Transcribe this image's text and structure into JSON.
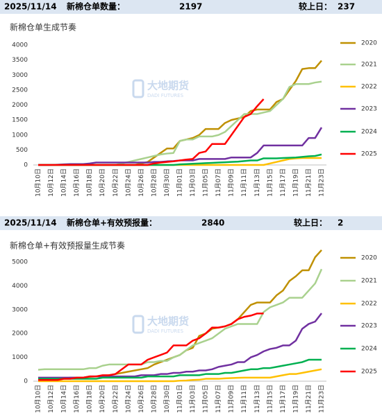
{
  "headers": [
    {
      "date": "2025/11/14",
      "label": "新棉仓单数量：",
      "value": 2197,
      "change_label": "较上日：",
      "change": 237
    },
    {
      "date": "2025/11/14",
      "label": "新棉仓单+有效预报量：",
      "value": 2840,
      "change_label": "较上日：",
      "change": 2
    }
  ],
  "chart_data": [
    {
      "type": "line",
      "title": "新棉仓单生成节奏",
      "watermark": {
        "name": "大地期货",
        "sub": "DADI FUTURES"
      },
      "categories": [
        "10月10日",
        null,
        "10月12日",
        null,
        "10月14日",
        null,
        "10月16日",
        null,
        "10月18日",
        null,
        "10月20日",
        null,
        "10月22日",
        null,
        "10月24日",
        null,
        "10月26日",
        null,
        "10月28日",
        null,
        "10月30日",
        null,
        "11月01日",
        null,
        "11月03日",
        null,
        "11月05日",
        null,
        "11月07日",
        null,
        "11月09日",
        null,
        "11月11日",
        null,
        "11月13日",
        null,
        "11月15日",
        null,
        "11月17日",
        null,
        "11月19日",
        null,
        "11月21日",
        null,
        "11月23日"
      ],
      "ylim": [
        0,
        4000
      ],
      "yticks": [
        0,
        500,
        1000,
        1500,
        2000,
        2500,
        3000,
        3500,
        4000
      ],
      "series": [
        {
          "name": "2020",
          "color": "#bf9000",
          "values": [
            0,
            0,
            0,
            0,
            0,
            0,
            0,
            0,
            0,
            0,
            0,
            0,
            0,
            0,
            0,
            0,
            50,
            100,
            250,
            400,
            550,
            550,
            800,
            850,
            900,
            1000,
            1200,
            1200,
            1200,
            1400,
            1500,
            1550,
            1600,
            1800,
            1850,
            1850,
            1850,
            2100,
            2200,
            2500,
            2800,
            3200,
            3230,
            3230,
            3480
          ]
        },
        {
          "name": "2021",
          "color": "#a9d18e",
          "values": [
            0,
            0,
            0,
            0,
            0,
            0,
            0,
            0,
            0,
            0,
            0,
            0,
            0,
            50,
            100,
            150,
            200,
            250,
            300,
            350,
            380,
            400,
            800,
            850,
            850,
            950,
            950,
            950,
            1000,
            1100,
            1300,
            1500,
            1700,
            1700,
            1700,
            1750,
            1800,
            2000,
            2200,
            2600,
            2700,
            2700,
            2700,
            2750,
            2780
          ]
        },
        {
          "name": "2022",
          "color": "#ffc000",
          "values": [
            0,
            0,
            0,
            0,
            0,
            0,
            0,
            0,
            0,
            0,
            0,
            0,
            0,
            0,
            0,
            0,
            0,
            0,
            0,
            0,
            0,
            0,
            0,
            0,
            0,
            0,
            0,
            0,
            0,
            0,
            0,
            0,
            0,
            0,
            0,
            0,
            50,
            100,
            150,
            200,
            220,
            230,
            230,
            230,
            230
          ]
        },
        {
          "name": "2023",
          "color": "#7030a0",
          "values": [
            0,
            0,
            0,
            10,
            20,
            30,
            30,
            30,
            50,
            80,
            80,
            80,
            80,
            80,
            80,
            80,
            80,
            80,
            100,
            100,
            120,
            130,
            150,
            150,
            150,
            200,
            200,
            200,
            200,
            200,
            250,
            250,
            250,
            250,
            400,
            650,
            650,
            650,
            650,
            650,
            650,
            650,
            900,
            900,
            1250
          ]
        },
        {
          "name": "2024",
          "color": "#00b050",
          "values": [
            0,
            0,
            0,
            0,
            0,
            0,
            0,
            0,
            0,
            0,
            0,
            0,
            0,
            0,
            0,
            0,
            0,
            0,
            0,
            0,
            0,
            0,
            20,
            30,
            40,
            50,
            60,
            70,
            80,
            90,
            100,
            110,
            130,
            150,
            150,
            220,
            220,
            220,
            230,
            240,
            250,
            270,
            290,
            300,
            350
          ]
        },
        {
          "name": "2025",
          "color": "#ff0000",
          "values": [
            0,
            0,
            0,
            0,
            0,
            0,
            0,
            0,
            0,
            0,
            0,
            0,
            0,
            0,
            0,
            0,
            0,
            0,
            50,
            80,
            100,
            120,
            150,
            180,
            200,
            400,
            450,
            700,
            700,
            700,
            1000,
            1300,
            1600,
            1700,
            1960,
            2197,
            null,
            null,
            null,
            null,
            null,
            null,
            null,
            null,
            null
          ]
        }
      ]
    },
    {
      "type": "line",
      "title": "新棉仓单+有效预报量生成节奏",
      "watermark": {
        "name": "大地期货",
        "sub": "DADI FUTURES"
      },
      "categories": [
        "10月10日",
        null,
        "10月12日",
        null,
        "10月14日",
        null,
        "10月16日",
        null,
        "10月18日",
        null,
        "10月20日",
        null,
        "10月22日",
        null,
        "10月24日",
        null,
        "10月26日",
        null,
        "10月28日",
        null,
        "10月30日",
        null,
        "11月01日",
        null,
        "11月03日",
        null,
        "11月05日",
        null,
        "11月07日",
        null,
        "11月09日",
        null,
        "11月11日",
        null,
        "11月13日",
        null,
        "11月15日",
        null,
        "11月17日",
        null,
        "11月19日",
        null,
        "11月21日",
        null,
        "11月23日"
      ],
      "ylim": [
        0,
        5000
      ],
      "yticks": [
        0,
        1000,
        2000,
        3000,
        4000,
        5000
      ],
      "series": [
        {
          "name": "2020",
          "color": "#bf9000",
          "values": [
            100,
            100,
            100,
            100,
            120,
            150,
            150,
            150,
            180,
            200,
            200,
            250,
            300,
            350,
            400,
            450,
            500,
            550,
            700,
            800,
            900,
            1000,
            1100,
            1300,
            1400,
            1900,
            2000,
            2200,
            2250,
            2300,
            2400,
            2600,
            2900,
            3200,
            3300,
            3300,
            3300,
            3600,
            3800,
            4200,
            4400,
            4650,
            4650,
            5200,
            5500
          ]
        },
        {
          "name": "2021",
          "color": "#a9d18e",
          "values": [
            480,
            500,
            500,
            500,
            500,
            500,
            500,
            500,
            550,
            550,
            650,
            700,
            700,
            700,
            700,
            700,
            700,
            800,
            800,
            850,
            850,
            1000,
            1100,
            1300,
            1500,
            1600,
            1700,
            1800,
            2000,
            2200,
            2300,
            2400,
            2400,
            2400,
            2400,
            2900,
            3100,
            3200,
            3300,
            3500,
            3500,
            3500,
            3800,
            4100,
            4700
          ]
        },
        {
          "name": "2022",
          "color": "#ffc000",
          "values": [
            0,
            0,
            0,
            0,
            0,
            0,
            0,
            0,
            0,
            0,
            0,
            0,
            0,
            0,
            0,
            0,
            0,
            0,
            0,
            0,
            0,
            0,
            20,
            30,
            50,
            60,
            100,
            100,
            100,
            120,
            130,
            140,
            150,
            150,
            150,
            150,
            150,
            200,
            250,
            300,
            300,
            350,
            400,
            450,
            500
          ]
        },
        {
          "name": "2023",
          "color": "#7030a0",
          "values": [
            150,
            150,
            150,
            150,
            150,
            150,
            150,
            150,
            200,
            200,
            200,
            200,
            200,
            200,
            200,
            200,
            250,
            250,
            250,
            300,
            300,
            350,
            350,
            400,
            400,
            450,
            450,
            500,
            600,
            650,
            700,
            800,
            800,
            1000,
            1100,
            1250,
            1350,
            1400,
            1500,
            1500,
            1700,
            2200,
            2400,
            2500,
            2850
          ]
        },
        {
          "name": "2024",
          "color": "#00b050",
          "values": [
            100,
            100,
            100,
            100,
            100,
            100,
            100,
            100,
            100,
            100,
            150,
            150,
            150,
            150,
            150,
            150,
            150,
            200,
            200,
            200,
            200,
            200,
            250,
            250,
            250,
            250,
            300,
            300,
            300,
            350,
            350,
            400,
            450,
            500,
            500,
            550,
            550,
            600,
            650,
            700,
            750,
            800,
            900,
            900,
            900
          ]
        },
        {
          "name": "2025",
          "color": "#ff0000",
          "values": [
            50,
            50,
            50,
            50,
            100,
            100,
            150,
            150,
            200,
            200,
            250,
            250,
            300,
            500,
            700,
            700,
            700,
            900,
            1000,
            1100,
            1200,
            1500,
            1500,
            1500,
            1700,
            1800,
            2000,
            2250,
            2250,
            2300,
            2400,
            2600,
            2700,
            2750,
            2838,
            2840,
            null,
            null,
            null,
            null,
            null,
            null,
            null,
            null,
            null
          ]
        }
      ]
    }
  ]
}
